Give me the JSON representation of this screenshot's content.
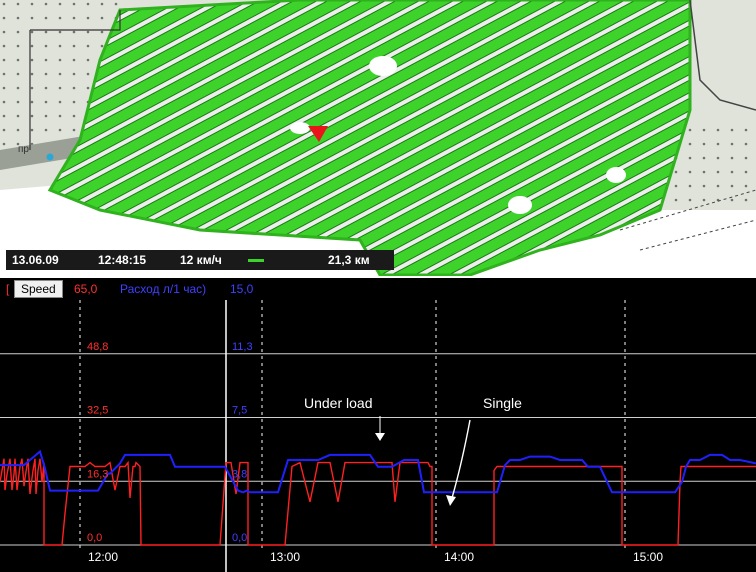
{
  "map": {
    "date": "13.06.09",
    "time": "12:48:15",
    "speed": "12 км/ч",
    "distance": "21,3 км",
    "signpost": "пр",
    "colors": {
      "field": "#3ed32a",
      "track": "#e6e6e6",
      "marker": "#e8151b"
    }
  },
  "chart": {
    "legend": {
      "speed_label": "Speed",
      "speed_value": "65,0",
      "flow_label": "Расход л/1 час)",
      "flow_value": "15,0"
    },
    "annotations": {
      "under_load": "Under load",
      "single": "Single"
    },
    "chart_data": {
      "type": "line",
      "x_ticks": [
        "12:00",
        "13:00",
        "14:00",
        "15:00"
      ],
      "speed_ticks": [
        "0,0",
        "16,3",
        "32,5",
        "48,8"
      ],
      "flow_ticks": [
        "0,0",
        "3,8",
        "7,5",
        "11,3"
      ],
      "speed_range": [
        0,
        65
      ],
      "flow_range": [
        0,
        15
      ],
      "series": [
        {
          "name": "Speed",
          "color": "#ff2020",
          "x": [
            0,
            4,
            5,
            7,
            10,
            12,
            14,
            15,
            17,
            20,
            22,
            24,
            25,
            28,
            30,
            33,
            35,
            36,
            38,
            40,
            42,
            44,
            44,
            60,
            62,
            65,
            70,
            75,
            80,
            85,
            90,
            95,
            100,
            105,
            110,
            115,
            120,
            125,
            128,
            130,
            133,
            135,
            136,
            140,
            141,
            160,
            165,
            170,
            175,
            180,
            185,
            190,
            195,
            200,
            205,
            210,
            215,
            217,
            220,
            226,
            231,
            236,
            240,
            248,
            248,
            250,
            255,
            260,
            268,
            275,
            280,
            285,
            292,
            300,
            310,
            318,
            320,
            325,
            330,
            338,
            345,
            350,
            355,
            362,
            370,
            380,
            388,
            392,
            395,
            400,
            405,
            410,
            415,
            420,
            425,
            428,
            430,
            432,
            432,
            440,
            450,
            470,
            490,
            494,
            494,
            497,
            500,
            505,
            510,
            520,
            530,
            540,
            550,
            560,
            570,
            580,
            590,
            600,
            610,
            618,
            622,
            622,
            640,
            660,
            678,
            680,
            681,
            685,
            690,
            695,
            700,
            705,
            710,
            715,
            720,
            725,
            730,
            735,
            740,
            745,
            750,
            756
          ],
          "y": [
            16,
            22,
            14,
            18,
            22,
            14,
            18,
            22,
            14,
            20,
            22,
            15,
            17,
            22,
            13,
            19,
            22,
            13,
            19,
            22,
            16,
            21,
            0,
            0,
            0,
            8,
            20,
            20,
            20,
            20,
            21,
            20,
            20,
            20,
            21,
            14,
            20,
            20,
            21,
            12,
            20,
            20,
            21,
            20,
            0,
            0,
            0,
            0,
            0,
            0,
            0,
            0,
            0,
            0,
            0,
            0,
            0,
            0,
            0,
            21,
            21,
            13,
            21,
            21,
            0,
            0,
            0,
            0,
            0,
            0,
            0,
            0,
            20,
            21,
            11,
            21,
            21,
            21,
            21,
            11,
            21,
            21,
            21,
            21,
            21,
            21,
            21,
            21,
            11,
            21,
            21,
            21,
            21,
            21,
            21,
            21,
            20,
            20,
            0,
            0,
            0,
            0,
            0,
            0,
            19,
            20,
            20,
            20,
            20,
            20,
            20,
            20,
            20,
            20,
            20,
            20,
            20,
            20,
            20,
            20,
            20,
            0,
            0,
            0,
            0,
            16,
            20,
            20,
            20,
            20,
            20,
            20,
            20,
            20,
            20,
            20,
            20,
            20,
            20,
            20,
            20,
            20
          ]
        },
        {
          "name": "Расход л/1 час)",
          "color": "#2020ff",
          "x": [
            0,
            10,
            18,
            24,
            40,
            45,
            50,
            60,
            98,
            108,
            110,
            120,
            125,
            130,
            140,
            150,
            170,
            175,
            200,
            225,
            238,
            243,
            247,
            250,
            258,
            278,
            288,
            297,
            318,
            330,
            345,
            370,
            378,
            392,
            404,
            410,
            418,
            424,
            435,
            445,
            455,
            470,
            485,
            490,
            497,
            505,
            510,
            520,
            530,
            540,
            550,
            560,
            568,
            570,
            582,
            588,
            600,
            612,
            618,
            625,
            635,
            650,
            665,
            675,
            682,
            686,
            690,
            700,
            710,
            722,
            730,
            740,
            756
          ],
          "y": [
            4.7,
            4.7,
            4.7,
            4.7,
            5.5,
            4.5,
            3.2,
            3.2,
            3.2,
            4.2,
            4.2,
            4.8,
            5.3,
            5.3,
            5.3,
            5.3,
            5.3,
            4.6,
            4.6,
            4.6,
            3.2,
            3.1,
            3.2,
            3.1,
            3.1,
            3.1,
            5.0,
            5.0,
            5.0,
            5.3,
            5.3,
            5.3,
            4.6,
            4.6,
            5.0,
            5.0,
            5.0,
            3.1,
            3.1,
            3.1,
            3.1,
            3.1,
            3.1,
            3.1,
            3.1,
            4.7,
            5.0,
            5.0,
            5.2,
            5.2,
            5.2,
            5.0,
            5.0,
            5.0,
            5.0,
            4.6,
            4.6,
            3.1,
            3.1,
            3.1,
            3.1,
            3.1,
            3.1,
            3.1,
            3.7,
            4.6,
            5.0,
            5.0,
            5.3,
            5.3,
            5.0,
            5.0,
            4.8
          ]
        }
      ],
      "grid": true
    }
  }
}
